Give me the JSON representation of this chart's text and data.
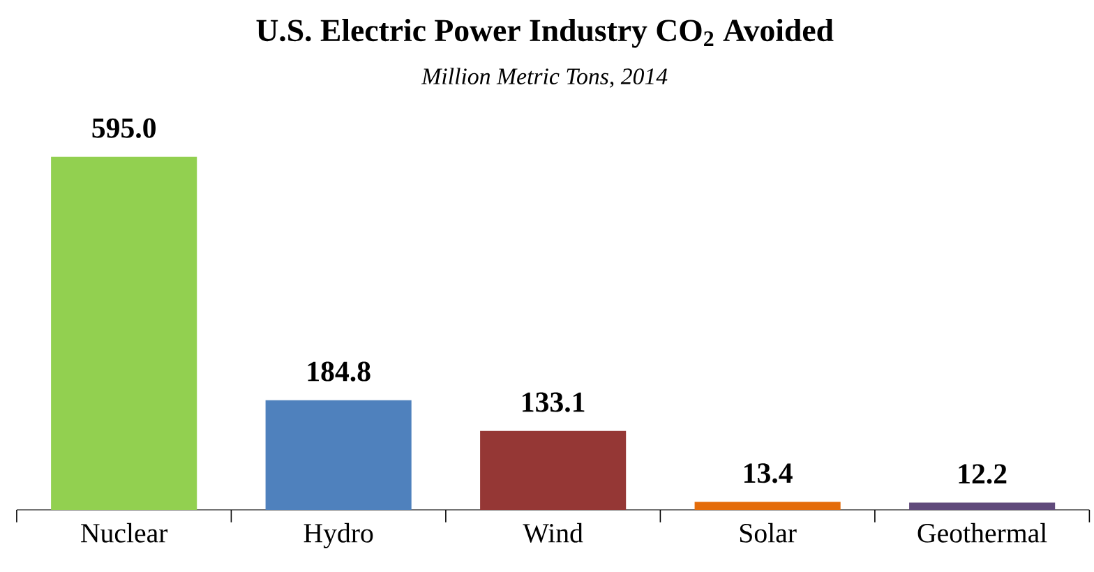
{
  "chart_data": {
    "type": "bar",
    "title": "**U.S. Electric Power Industry CO$_{2}$ Avoided**",
    "subtitle": "*Million Metric Tons, 2014*",
    "categories": [
      "Nuclear",
      "Hydro",
      "Wind",
      "Solar",
      "Geothermal"
    ],
    "values": [
      595.0,
      184.8,
      133.1,
      13.4,
      12.2
    ],
    "colors": [
      "#92d050",
      "#4f81bd",
      "#953735",
      "#e46c0a",
      "#604a7b"
    ],
    "value_labels": [
      "595.0",
      "184.8",
      "133.1",
      "13.4",
      "12.2"
    ]
  }
}
